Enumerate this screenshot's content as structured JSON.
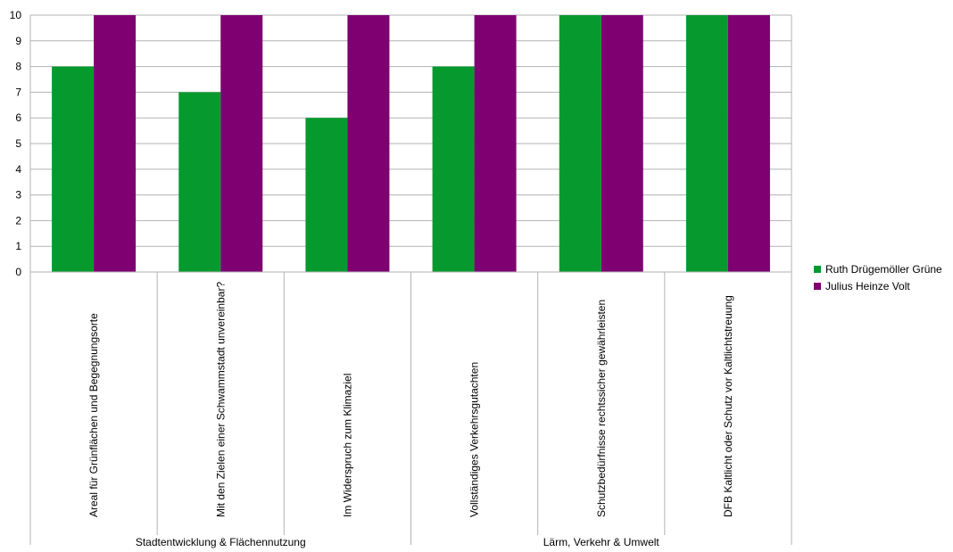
{
  "chart_data": {
    "type": "bar",
    "title": "",
    "xlabel": "",
    "ylabel": "",
    "ylim": [
      0,
      10
    ],
    "yticks": [
      0,
      1,
      2,
      3,
      4,
      5,
      6,
      7,
      8,
      9,
      10
    ],
    "grid": true,
    "legend_position": "right",
    "categories": [
      "Areal für Grünflächen und Begegnungsorte",
      "Mit den Zielen einer Schwammstadt unvereinbar?",
      "Im Widerspruch zum Klimaziel",
      "Vollständiges Verkehrsgutachten",
      "Schutzbedürfnisse rechtssicher gewährleisten",
      "DFB Kaltlicht oder Schutz vor Kaltlichtstreuung"
    ],
    "groups": [
      {
        "label": "Stadtentwicklung & Flächennutzung",
        "count": 3
      },
      {
        "label": "Lärm, Verkehr & Umwelt",
        "count": 3
      }
    ],
    "series": [
      {
        "name": "Ruth Drügemöller Grüne",
        "color": "#069a2e",
        "values": [
          8,
          7,
          6,
          8,
          10,
          10
        ]
      },
      {
        "name": "Julius Heinze Volt",
        "color": "#7e0071",
        "values": [
          10,
          10,
          10,
          10,
          10,
          10
        ]
      }
    ]
  }
}
